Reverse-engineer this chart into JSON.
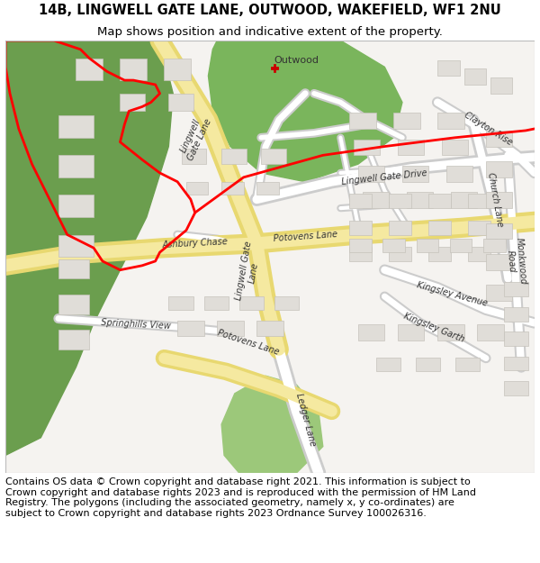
{
  "title_line1": "14B, LINGWELL GATE LANE, OUTWOOD, WAKEFIELD, WF1 2NU",
  "title_line2": "Map shows position and indicative extent of the property.",
  "footer_text": "Contains OS data © Crown copyright and database right 2021. This information is subject to Crown copyright and database rights 2023 and is reproduced with the permission of HM Land Registry. The polygons (including the associated geometry, namely x, y co-ordinates) are subject to Crown copyright and database rights 2023 Ordnance Survey 100026316.",
  "title_fontsize": 10.5,
  "subtitle_fontsize": 9.5,
  "footer_fontsize": 8.0,
  "title_color": "#000000",
  "footer_color": "#000000",
  "map_bg_color": "#f5f3f0",
  "header_bg": "#ffffff",
  "fig_width": 6.0,
  "fig_height": 6.25,
  "dpi": 100,
  "road_yellow": "#f5e9a0",
  "road_yellow_border": "#e8d870",
  "road_white": "#ffffff",
  "road_white_border": "#cccccc",
  "green_dark": "#8fbb6e",
  "green_light": "#b8d89a",
  "building_fill": "#e0ddd8",
  "building_edge": "#c8c5be",
  "red_boundary": "#ff0000"
}
